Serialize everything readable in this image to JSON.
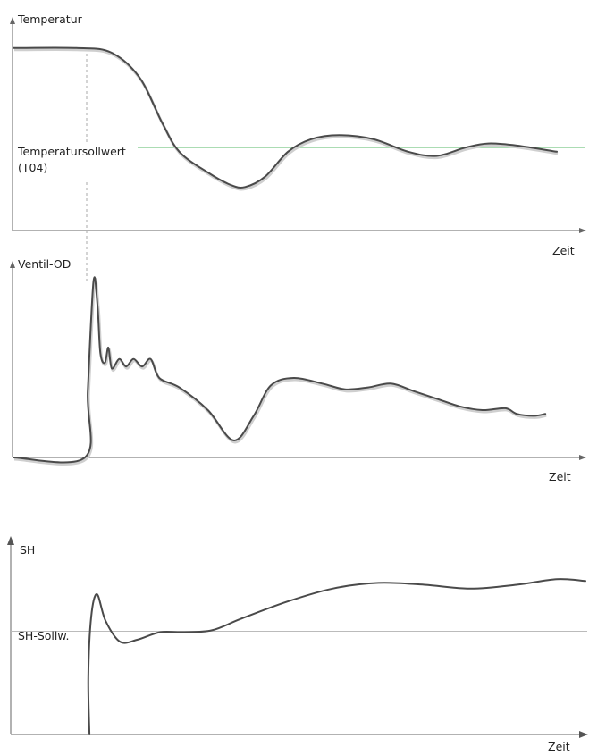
{
  "charts": {
    "temperature": {
      "ylabel": "Temperatur",
      "xlabel": "Zeit",
      "setpoint_line1": "Temperatursollwert",
      "setpoint_line2": "(T04)"
    },
    "valve": {
      "ylabel": "Ventil-OD",
      "xlabel": "Zeit"
    },
    "superheat": {
      "ylabel": "SH",
      "xlabel": "Zeit",
      "setpoint": "SH-Sollw."
    }
  },
  "colors": {
    "curve": "#4a4a4a",
    "temperature_setpoint": "#8fd19a",
    "sh_setpoint": "#bbbbbb",
    "axis": "#666666",
    "guide": "#aaaaaa"
  },
  "chart_data": [
    {
      "type": "line",
      "ylabel": "Temperatur",
      "xlabel": "Zeit",
      "annotations": [
        "Temperatursollwert",
        "(T04)"
      ],
      "series": [
        {
          "values": [
            [
              0.0,
              0.88
            ],
            [
              0.11,
              0.88
            ],
            [
              0.17,
              0.86
            ],
            [
              0.22,
              0.74
            ],
            [
              0.26,
              0.52
            ],
            [
              0.29,
              0.38
            ],
            [
              0.34,
              0.28
            ],
            [
              0.38,
              0.22
            ],
            [
              0.405,
              0.21
            ],
            [
              0.44,
              0.26
            ],
            [
              0.48,
              0.38
            ],
            [
              0.52,
              0.44
            ],
            [
              0.57,
              0.46
            ],
            [
              0.63,
              0.44
            ],
            [
              0.69,
              0.38
            ],
            [
              0.74,
              0.36
            ],
            [
              0.79,
              0.4
            ],
            [
              0.83,
              0.42
            ],
            [
              0.88,
              0.41
            ],
            [
              0.95,
              0.38
            ]
          ]
        }
      ],
      "setpoint": 0.4
    },
    {
      "type": "line",
      "ylabel": "Ventil-OD",
      "xlabel": "Zeit",
      "series": [
        {
          "values": [
            [
              0.0,
              0.0
            ],
            [
              0.125,
              0.0
            ],
            [
              0.13,
              0.35
            ],
            [
              0.14,
              0.93
            ],
            [
              0.147,
              0.8
            ],
            [
              0.152,
              0.55
            ],
            [
              0.16,
              0.5
            ],
            [
              0.166,
              0.58
            ],
            [
              0.172,
              0.47
            ],
            [
              0.185,
              0.52
            ],
            [
              0.197,
              0.48
            ],
            [
              0.21,
              0.52
            ],
            [
              0.225,
              0.48
            ],
            [
              0.24,
              0.52
            ],
            [
              0.255,
              0.42
            ],
            [
              0.29,
              0.37
            ],
            [
              0.34,
              0.25
            ],
            [
              0.385,
              0.09
            ],
            [
              0.42,
              0.22
            ],
            [
              0.45,
              0.38
            ],
            [
              0.49,
              0.42
            ],
            [
              0.54,
              0.39
            ],
            [
              0.58,
              0.36
            ],
            [
              0.62,
              0.37
            ],
            [
              0.66,
              0.39
            ],
            [
              0.7,
              0.35
            ],
            [
              0.74,
              0.31
            ],
            [
              0.78,
              0.27
            ],
            [
              0.82,
              0.25
            ],
            [
              0.86,
              0.26
            ],
            [
              0.88,
              0.23
            ],
            [
              0.91,
              0.22
            ],
            [
              0.93,
              0.23
            ]
          ]
        }
      ]
    },
    {
      "type": "line",
      "ylabel": "SH",
      "xlabel": "Zeit",
      "annotations": [
        "SH-Sollw."
      ],
      "series": [
        {
          "values": [
            [
              0.137,
              0.0
            ],
            [
              0.135,
              0.3
            ],
            [
              0.14,
              0.62
            ],
            [
              0.15,
              0.74
            ],
            [
              0.165,
              0.6
            ],
            [
              0.19,
              0.49
            ],
            [
              0.22,
              0.5
            ],
            [
              0.26,
              0.54
            ],
            [
              0.3,
              0.54
            ],
            [
              0.35,
              0.55
            ],
            [
              0.4,
              0.61
            ],
            [
              0.48,
              0.7
            ],
            [
              0.56,
              0.77
            ],
            [
              0.64,
              0.8
            ],
            [
              0.72,
              0.79
            ],
            [
              0.8,
              0.77
            ],
            [
              0.88,
              0.79
            ],
            [
              0.95,
              0.82
            ],
            [
              1.0,
              0.81
            ]
          ]
        }
      ],
      "setpoint": 0.545
    }
  ]
}
